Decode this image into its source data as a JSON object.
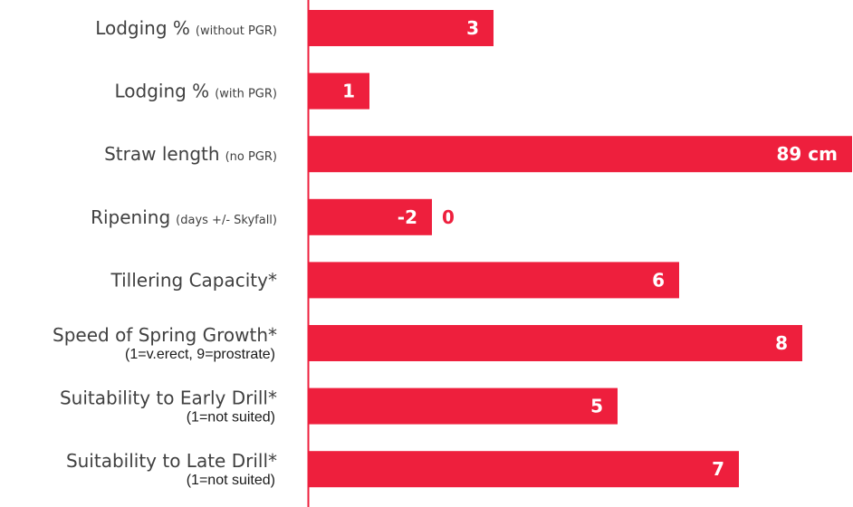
{
  "chart_data": {
    "type": "bar",
    "orientation": "horizontal",
    "colors": {
      "bar": "#ee1f3d",
      "axis": "#ee1f3d",
      "value_text_inside": "#ffffff",
      "value_text_outside": "#ee1f3d",
      "label_text": "#404040"
    },
    "rows": [
      {
        "label": "Lodging %",
        "label_paren": "(without PGR)",
        "sublabel": "",
        "value": 3,
        "display": "3"
      },
      {
        "label": "Lodging %",
        "label_paren": "(with PGR)",
        "sublabel": "",
        "value": 1,
        "display": "1"
      },
      {
        "label": "Straw length",
        "label_paren": "(no PGR)",
        "sublabel": "",
        "value": 89,
        "display": "89 cm"
      },
      {
        "label": "Ripening",
        "label_paren": "(days +/- Skyfall)",
        "sublabel": "",
        "value": 2,
        "display": "-2",
        "outside_label": "0"
      },
      {
        "label": "Tillering Capacity*",
        "label_paren": "",
        "sublabel": "",
        "value": 6,
        "display": "6"
      },
      {
        "label": "Speed of Spring Growth*",
        "label_paren": "",
        "sublabel": "(1=v.erect, 9=prostrate)",
        "value": 8,
        "display": "8"
      },
      {
        "label": "Suitability to Early Drill*",
        "label_paren": "",
        "sublabel": "(1=not suited)",
        "value": 5,
        "display": "5"
      },
      {
        "label": "Suitability to Late Drill*",
        "label_paren": "",
        "sublabel": "(1=not suited)",
        "value": 7,
        "display": "7"
      }
    ]
  }
}
